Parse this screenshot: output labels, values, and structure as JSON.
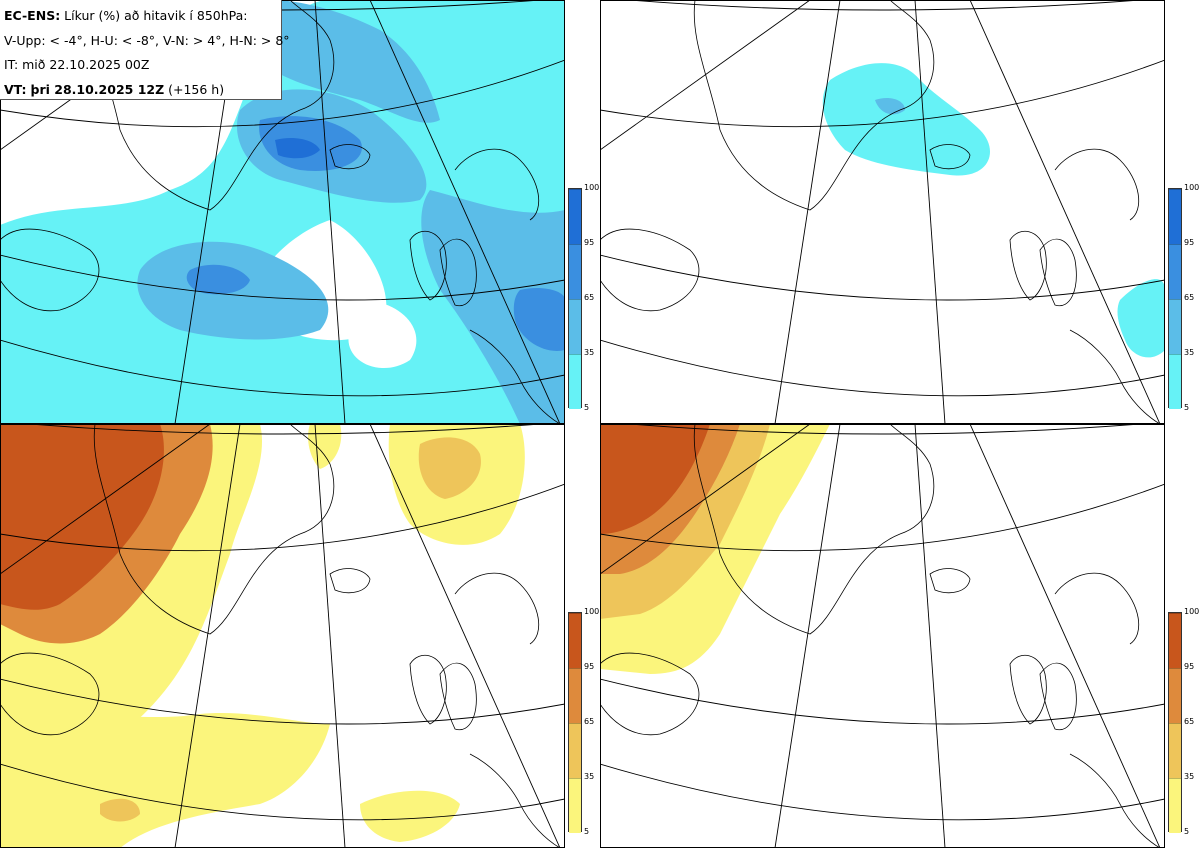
{
  "header": {
    "model": "EC-ENS:",
    "title_rest": " Líkur (%) að hitavik í 850hPa:",
    "categories": "V-Upp: < -4°, H-U: < -8°, V-N: > 4°, H-N: > 8°",
    "init_time": "IT: mið 22.10.2025 00Z",
    "valid_prefix": "VT:",
    "valid_time": "þri 28.10.2025 12Z",
    "lead": " (+156 h)"
  },
  "colorbars": {
    "cold": {
      "ticks": [
        "100",
        "95",
        "65",
        "35",
        "5"
      ],
      "colors": [
        "#1f6fd6",
        "#3a8fe0",
        "#5bbde8",
        "#66f2f6"
      ]
    },
    "warm": {
      "ticks": [
        "100",
        "95",
        "65",
        "35",
        "5"
      ],
      "colors": [
        "#c8561c",
        "#de8a3c",
        "#eec55a",
        "#fbf57c"
      ]
    }
  },
  "panels": [
    {
      "name": "V-Upp",
      "colorbar": "cold"
    },
    {
      "name": "H-U",
      "colorbar": "cold"
    },
    {
      "name": "V-N",
      "colorbar": "warm"
    },
    {
      "name": "H-N",
      "colorbar": "warm"
    }
  ]
}
